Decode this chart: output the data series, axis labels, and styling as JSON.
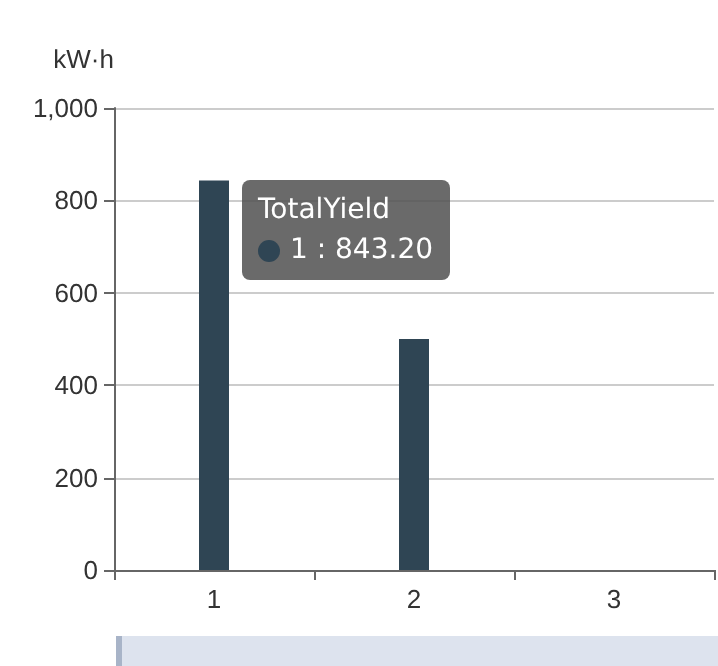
{
  "chart_data": {
    "type": "bar",
    "ylabel": "kW·h",
    "categories": [
      "1",
      "2",
      "3"
    ],
    "series": [
      {
        "name": "TotalYield",
        "color": "#2f4554",
        "values": [
          843.2,
          500,
          null
        ]
      }
    ],
    "ylim": [
      0,
      1000
    ],
    "yticks": [
      0,
      200,
      400,
      600,
      800,
      {
        "value": 1000,
        "label": "1,000"
      }
    ],
    "grid": "y",
    "legend": false,
    "annotations": [
      "1 : 843.20"
    ]
  }
}
